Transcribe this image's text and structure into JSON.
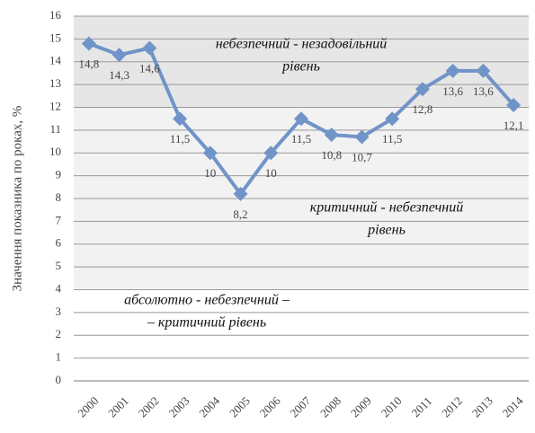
{
  "chart_data": {
    "type": "line",
    "ylabel": "Значення показника по роках, %",
    "categories": [
      "2000",
      "2001",
      "2002",
      "2003",
      "2004",
      "2005",
      "2006",
      "2007",
      "2008",
      "2009",
      "2010",
      "2011",
      "2012",
      "2013",
      "2014"
    ],
    "values": [
      14.8,
      14.3,
      14.6,
      11.5,
      10,
      8.2,
      10,
      11.5,
      10.8,
      10.7,
      11.5,
      12.8,
      13.6,
      13.6,
      12.1
    ],
    "value_labels": [
      "14,8",
      "14,3",
      "14,6",
      "11,5",
      "10",
      "8,2",
      "10",
      "11,5",
      "10,8",
      "10,7",
      "11,5",
      "12,8",
      "13,6",
      "13,6",
      "12,1"
    ],
    "color": "#7094c8",
    "ylim": [
      0,
      16
    ],
    "yticks": [
      0,
      1,
      2,
      3,
      4,
      5,
      6,
      7,
      8,
      9,
      10,
      11,
      12,
      13,
      14,
      15,
      16
    ],
    "grid": true,
    "zones": [
      {
        "range": [
          12,
          16
        ],
        "color": "#e6e6e6",
        "lines": [
          "небезпечний - незадовільний",
          "рівень"
        ]
      },
      {
        "range": [
          4,
          12
        ],
        "color": "#f2f2f2",
        "lines": [
          "критичний - небезпечний",
          "рівень"
        ]
      },
      {
        "range": [
          0,
          4
        ],
        "color": "#ffffff",
        "lines": [
          "абсолютно - небезпечний –",
          "– критичний рівень"
        ]
      }
    ]
  }
}
